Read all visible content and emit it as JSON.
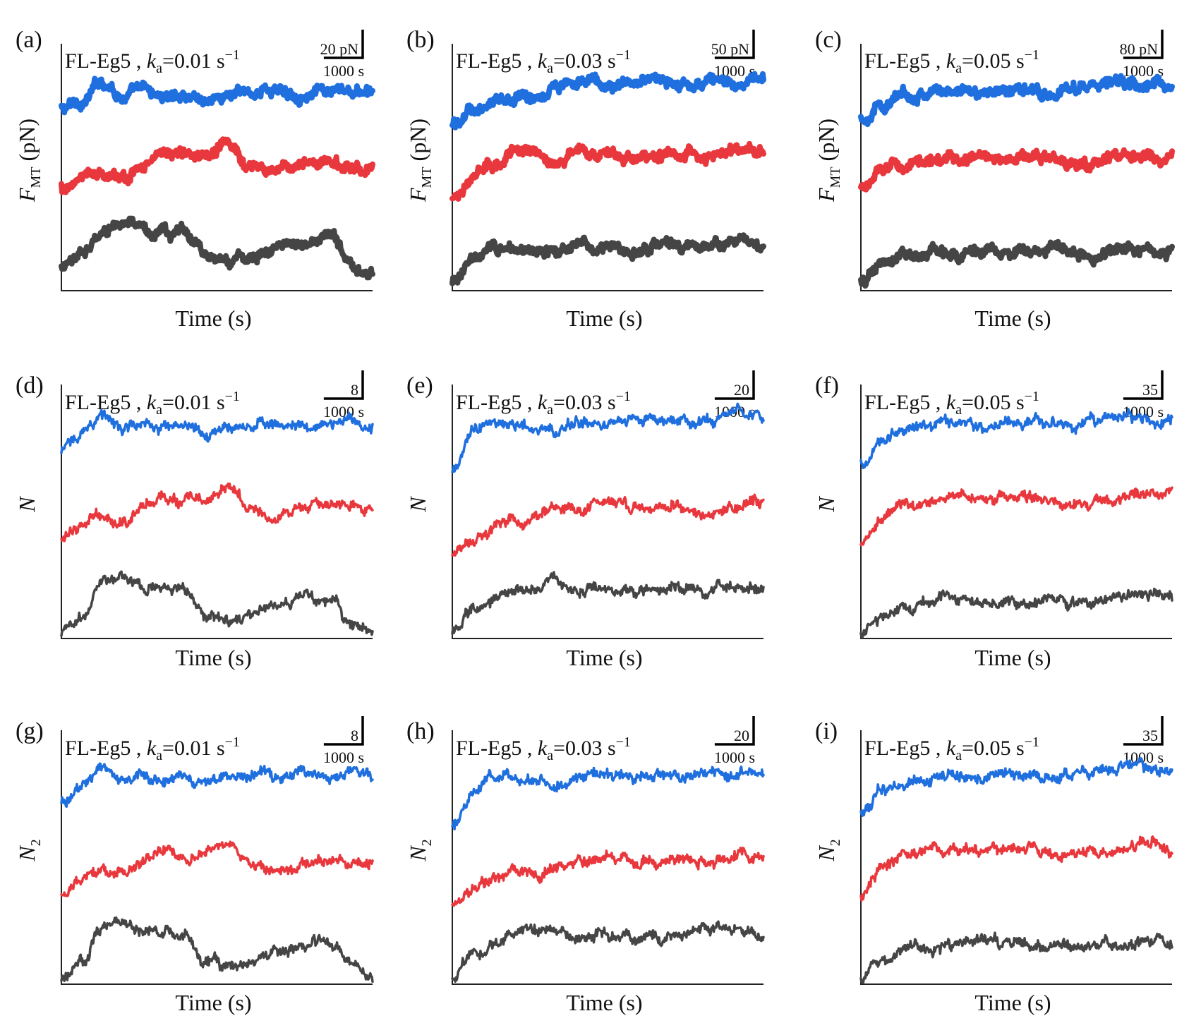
{
  "figure": {
    "colors": {
      "blue": "#1f6fde",
      "red": "#e8383d",
      "dark": "#454545",
      "axis": "#222222"
    }
  },
  "chart_data": [
    {
      "type": "line",
      "panel_label": "(a)",
      "title_prefix": "FL-Eg5 , ",
      "title_k": "k",
      "title_sub": "a",
      "title_value": "=0.01 s",
      "title_sup": "−1",
      "ylabel_main": "F",
      "ylabel_sub": "MT",
      "ylabel_unit": " (pN)",
      "xlabel": "Time (s)",
      "scale_y_label": "20 pN",
      "scale_x_label": "1000 s",
      "y_scale_units": 20,
      "x_range": [
        0,
        6000
      ],
      "y_range": [
        0,
        120
      ],
      "series": [
        {
          "color": "blue",
          "values": [
            88,
            92,
            102,
            95,
            97,
            94,
            96,
            93,
            95,
            96,
            98,
            96,
            97,
            95,
            96,
            95
          ]
        },
        {
          "color": "red",
          "values": [
            50,
            55,
            58,
            54,
            62,
            66,
            65,
            68,
            70,
            61,
            58,
            60,
            63,
            61,
            62,
            60
          ]
        },
        {
          "color": "dark",
          "values": [
            10,
            18,
            30,
            32,
            28,
            27,
            29,
            19,
            14,
            16,
            20,
            22,
            25,
            26,
            12,
            10
          ]
        }
      ]
    },
    {
      "type": "line",
      "panel_label": "(b)",
      "title_prefix": "FL-Eg5 , ",
      "title_k": "k",
      "title_sub": "a",
      "title_value": "=0.03 s",
      "title_sup": "−1",
      "ylabel_main": "F",
      "ylabel_sub": "MT",
      "ylabel_unit": " (pN)",
      "xlabel": "Time (s)",
      "scale_y_label": "50 pN",
      "scale_x_label": "1000 s",
      "y_scale_units": 50,
      "x_range": [
        0,
        6000
      ],
      "y_range": [
        0,
        320
      ],
      "series": [
        {
          "color": "blue",
          "values": [
            215,
            235,
            245,
            250,
            255,
            265,
            272,
            270,
            268,
            272,
            274,
            270,
            266,
            268,
            270,
            272
          ]
        },
        {
          "color": "red",
          "values": [
            120,
            150,
            165,
            178,
            180,
            170,
            182,
            176,
            172,
            174,
            178,
            180,
            176,
            178,
            180,
            182
          ]
        },
        {
          "color": "dark",
          "values": [
            10,
            40,
            52,
            55,
            56,
            52,
            54,
            53,
            55,
            52,
            56,
            55,
            58,
            57,
            60,
            58
          ]
        }
      ]
    },
    {
      "type": "line",
      "panel_label": "(c)",
      "title_prefix": "FL-Eg5 , ",
      "title_k": "k",
      "title_sub": "a",
      "title_value": "=0.05 s",
      "title_sup": "−1",
      "ylabel_main": "F",
      "ylabel_sub": "MT",
      "ylabel_unit": " (pN)",
      "xlabel": "Time (s)",
      "scale_y_label": "80 pN",
      "scale_x_label": "1000 s",
      "y_scale_units": 80,
      "x_range": [
        0,
        6000
      ],
      "y_range": [
        0,
        560
      ],
      "series": [
        {
          "color": "blue",
          "values": [
            390,
            420,
            440,
            450,
            455,
            458,
            452,
            455,
            456,
            452,
            458,
            462,
            468,
            470,
            468,
            465
          ]
        },
        {
          "color": "red",
          "values": [
            230,
            270,
            285,
            292,
            294,
            296,
            298,
            297,
            299,
            298,
            296,
            292,
            296,
            302,
            305,
            300
          ]
        },
        {
          "color": "dark",
          "values": [
            20,
            60,
            78,
            84,
            88,
            92,
            90,
            86,
            88,
            90,
            89,
            88,
            90,
            92,
            96,
            98
          ]
        }
      ]
    },
    {
      "type": "line",
      "panel_label": "(d)",
      "title_prefix": "FL-Eg5 , ",
      "title_k": "k",
      "title_sub": "a",
      "title_value": "=0.01 s",
      "title_sup": "−1",
      "ylabel_main": "N",
      "ylabel_sub": "",
      "ylabel_unit": "",
      "xlabel": "Time (s)",
      "scale_y_label": "8",
      "scale_x_label": "1000 s",
      "y_scale_units": 8,
      "x_range": [
        0,
        6000
      ],
      "y_range": [
        0,
        50
      ],
      "series": [
        {
          "color": "blue",
          "values": [
            37,
            41,
            44,
            41,
            42,
            41,
            41,
            40,
            42,
            42,
            43,
            42,
            42,
            42,
            43,
            42
          ]
        },
        {
          "color": "red",
          "values": [
            20,
            22,
            24,
            23,
            26,
            28,
            27,
            28,
            29,
            26,
            24,
            25,
            26,
            26,
            26,
            26
          ]
        },
        {
          "color": "dark",
          "values": [
            1,
            5,
            11,
            12,
            10,
            10,
            10,
            5,
            3,
            4,
            6,
            7,
            8,
            8,
            3,
            2
          ]
        }
      ]
    },
    {
      "type": "line",
      "panel_label": "(e)",
      "title_prefix": "FL-Eg5 , ",
      "title_k": "k",
      "title_sub": "a",
      "title_value": "=0.03 s",
      "title_sup": "−1",
      "ylabel_main": "N",
      "ylabel_sub": "",
      "ylabel_unit": "",
      "xlabel": "Time (s)",
      "scale_y_label": "20",
      "scale_x_label": "1000 s",
      "y_scale_units": 20,
      "x_range": [
        0,
        6000
      ],
      "y_range": [
        0,
        110
      ],
      "series": [
        {
          "color": "blue",
          "values": [
            72,
            90,
            93,
            94,
            92,
            91,
            93,
            93,
            93,
            94,
            95,
            94,
            95,
            96,
            97,
            95
          ]
        },
        {
          "color": "red",
          "values": [
            36,
            45,
            49,
            51,
            52,
            55,
            56,
            57,
            58,
            57,
            58,
            57,
            55,
            56,
            58,
            57
          ]
        },
        {
          "color": "dark",
          "values": [
            2,
            12,
            18,
            22,
            23,
            24,
            20,
            22,
            21,
            20,
            21,
            22,
            22,
            23,
            24,
            22
          ]
        }
      ]
    },
    {
      "type": "line",
      "panel_label": "(f)",
      "title_prefix": "FL-Eg5 , ",
      "title_k": "k",
      "title_sub": "a",
      "title_value": "=0.05 s",
      "title_sup": "−1",
      "ylabel_main": "N",
      "ylabel_sub": "",
      "ylabel_unit": "",
      "xlabel": "Time (s)",
      "scale_y_label": "35",
      "scale_x_label": "1000 s",
      "y_scale_units": 35,
      "x_range": [
        0,
        6000
      ],
      "y_range": [
        0,
        210
      ],
      "series": [
        {
          "color": "blue",
          "values": [
            145,
            165,
            172,
            176,
            178,
            175,
            176,
            178,
            177,
            176,
            178,
            180,
            182,
            183,
            182,
            178
          ]
        },
        {
          "color": "red",
          "values": [
            75,
            100,
            110,
            113,
            115,
            116,
            116,
            117,
            116,
            115,
            113,
            112,
            115,
            118,
            122,
            118
          ]
        },
        {
          "color": "dark",
          "values": [
            2,
            18,
            26,
            30,
            32,
            34,
            33,
            31,
            32,
            33,
            32,
            31,
            31,
            33,
            35,
            36
          ]
        }
      ]
    },
    {
      "type": "line",
      "panel_label": "(g)",
      "title_prefix": "FL-Eg5 , ",
      "title_k": "k",
      "title_sub": "a",
      "title_value": "=0.01 s",
      "title_sup": "−1",
      "ylabel_main": "N",
      "ylabel_sub": "2",
      "ylabel_unit": "",
      "xlabel": "Time (s)",
      "scale_y_label": "8",
      "scale_x_label": "1000 s",
      "y_scale_units": 8,
      "x_range": [
        0,
        6000
      ],
      "y_range": [
        0,
        50
      ],
      "series": [
        {
          "color": "blue",
          "values": [
            36,
            40,
            43,
            40,
            41,
            40,
            40,
            39,
            41,
            41,
            42,
            41,
            41,
            41,
            42,
            41
          ]
        },
        {
          "color": "red",
          "values": [
            18,
            20,
            22,
            21,
            24,
            26,
            25,
            26,
            27,
            24,
            22,
            23,
            24,
            24,
            24,
            24
          ]
        },
        {
          "color": "dark",
          "values": [
            1,
            5,
            11,
            12,
            10,
            10,
            10,
            5,
            3,
            4,
            6,
            7,
            8,
            8,
            3,
            2
          ]
        }
      ]
    },
    {
      "type": "line",
      "panel_label": "(h)",
      "title_prefix": "FL-Eg5 , ",
      "title_k": "k",
      "title_sub": "a",
      "title_value": "=0.03 s",
      "title_sup": "−1",
      "ylabel_main": "N",
      "ylabel_sub": "2",
      "ylabel_unit": "",
      "xlabel": "Time (s)",
      "scale_y_label": "20",
      "scale_x_label": "1000 s",
      "y_scale_units": 20,
      "x_range": [
        0,
        6000
      ],
      "y_range": [
        0,
        110
      ],
      "series": [
        {
          "color": "blue",
          "values": [
            68,
            86,
            89,
            90,
            88,
            87,
            89,
            89,
            89,
            90,
            91,
            90,
            91,
            92,
            93,
            91
          ]
        },
        {
          "color": "red",
          "values": [
            34,
            42,
            46,
            48,
            49,
            52,
            53,
            54,
            55,
            54,
            55,
            54,
            52,
            53,
            55,
            54
          ]
        },
        {
          "color": "dark",
          "values": [
            2,
            12,
            18,
            22,
            23,
            24,
            20,
            22,
            21,
            20,
            21,
            22,
            22,
            23,
            24,
            22
          ]
        }
      ]
    },
    {
      "type": "line",
      "panel_label": "(i)",
      "title_prefix": "FL-Eg5 , ",
      "title_k": "k",
      "title_sub": "a",
      "title_value": "=0.05 s",
      "title_sup": "−1",
      "ylabel_main": "N",
      "ylabel_sub": "2",
      "ylabel_unit": "",
      "xlabel": "Time (s)",
      "scale_y_label": "35",
      "scale_x_label": "1000 s",
      "y_scale_units": 35,
      "x_range": [
        0,
        6000
      ],
      "y_range": [
        0,
        210
      ],
      "series": [
        {
          "color": "blue",
          "values": [
            140,
            160,
            167,
            171,
            173,
            170,
            171,
            173,
            172,
            171,
            173,
            175,
            177,
            178,
            177,
            173
          ]
        },
        {
          "color": "red",
          "values": [
            70,
            95,
            105,
            108,
            110,
            111,
            111,
            112,
            111,
            110,
            108,
            107,
            110,
            113,
            117,
            113
          ]
        },
        {
          "color": "dark",
          "values": [
            2,
            18,
            26,
            30,
            32,
            34,
            33,
            31,
            32,
            33,
            32,
            31,
            31,
            33,
            35,
            36
          ]
        }
      ]
    }
  ]
}
